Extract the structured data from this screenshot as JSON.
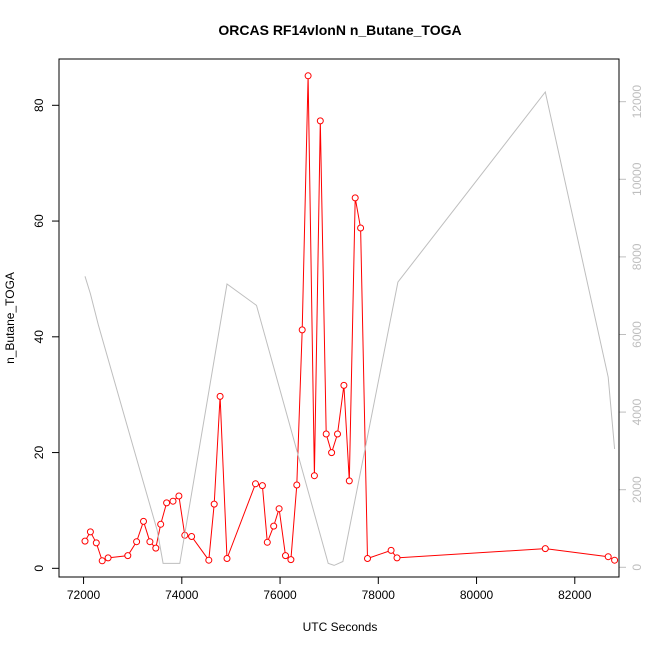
{
  "chart_data": {
    "type": "line",
    "title": "ORCAS RF14vlonN n_Butane_TOGA",
    "xlabel": "UTC Seconds",
    "ylabel": "n_Butane_TOGA",
    "xlim": [
      71500,
      82900
    ],
    "ylim": [
      -1.5,
      88
    ],
    "y2lim": [
      -250,
      13100
    ],
    "x_ticks": [
      72000,
      74000,
      76000,
      78000,
      80000,
      82000
    ],
    "y_ticks": [
      0,
      20,
      40,
      60,
      80
    ],
    "y2_ticks": [
      0,
      2000,
      4000,
      6000,
      8000,
      10000,
      12000
    ],
    "colors": {
      "primary": "#ff0000",
      "secondary": "#bebebe"
    },
    "series": [
      {
        "axis": "left",
        "color": "#ff0000",
        "marker": "open-circle",
        "x": [
          72030,
          72140,
          72260,
          72380,
          72500,
          72900,
          73080,
          73220,
          73350,
          73470,
          73570,
          73690,
          73820,
          73940,
          74060,
          74200,
          74550,
          74660,
          74780,
          74920,
          75500,
          75640,
          75740,
          75870,
          75980,
          76110,
          76220,
          76340,
          76450,
          76570,
          76700,
          76820,
          76940,
          77050,
          77170,
          77300,
          77410,
          77530,
          77640,
          77780,
          78260,
          78380,
          81400,
          82680,
          82810
        ],
        "y": [
          4.7,
          6.3,
          4.4,
          1.3,
          1.8,
          2.2,
          4.6,
          8.1,
          4.6,
          3.5,
          7.6,
          11.3,
          11.6,
          12.5,
          5.7,
          5.5,
          1.4,
          11.1,
          29.7,
          1.7,
          14.6,
          14.3,
          4.5,
          7.3,
          10.3,
          2.2,
          1.5,
          14.4,
          41.2,
          85.1,
          16.0,
          77.3,
          23.2,
          20.0,
          23.2,
          31.6,
          15.1,
          64.0,
          58.8,
          1.7,
          3.1,
          1.8,
          3.4,
          2.0,
          1.4
        ]
      },
      {
        "axis": "right",
        "color": "#bebebe",
        "marker": "none",
        "x": [
          72030,
          72140,
          72300,
          73000,
          73500,
          73620,
          73960,
          74920,
          75520,
          76980,
          77100,
          77280,
          78400,
          81400,
          82680,
          82810
        ],
        "y": [
          7500,
          7050,
          6250,
          3150,
          950,
          100,
          100,
          7300,
          6750,
          100,
          50,
          150,
          7350,
          12250,
          4900,
          3050
        ]
      }
    ]
  }
}
